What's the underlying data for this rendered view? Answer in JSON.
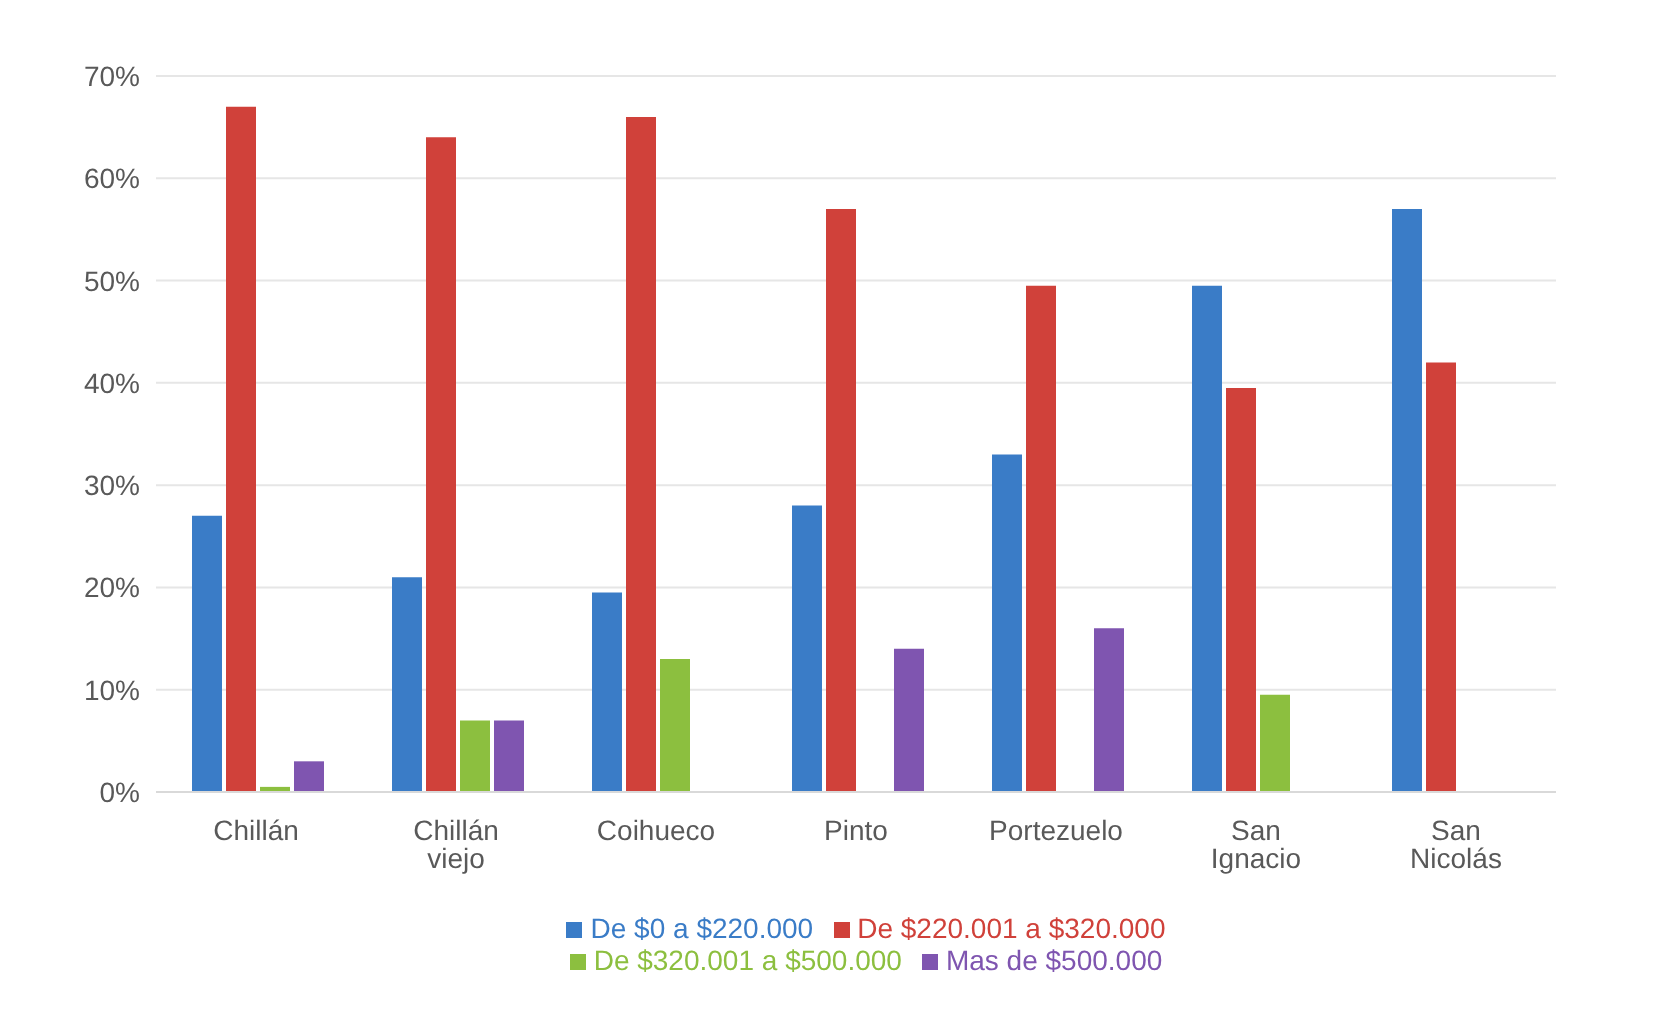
{
  "chart_data": {
    "type": "bar",
    "categories": [
      "Chillán",
      "Chillán viejo",
      "Coihueco",
      "Pinto",
      "Portezuelo",
      "San Ignacio",
      "San Nicolás"
    ],
    "series": [
      {
        "name": "De $0 a $220.000",
        "color": "#3a7cc7",
        "values": [
          27,
          21,
          19.5,
          28,
          33,
          49.5,
          57
        ]
      },
      {
        "name": "De $220.001 a $320.000",
        "color": "#d0413a",
        "values": [
          67,
          64,
          66,
          57,
          49.5,
          39.5,
          42
        ]
      },
      {
        "name": "De $320.001 a $500.000",
        "color": "#8cbf3f",
        "values": [
          0.5,
          7,
          13,
          0,
          0,
          9.5,
          0
        ]
      },
      {
        "name": "Mas de $500.000",
        "color": "#7f55b0",
        "values": [
          3,
          7,
          0,
          14,
          16,
          0,
          0
        ]
      }
    ],
    "ylim": [
      0,
      70
    ],
    "yticks": [
      {
        "value": 0,
        "label": "0%"
      },
      {
        "value": 10,
        "label": "10%"
      },
      {
        "value": 20,
        "label": "20%"
      },
      {
        "value": 30,
        "label": "30%"
      },
      {
        "value": 40,
        "label": "40%"
      },
      {
        "value": 50,
        "label": "50%"
      },
      {
        "value": 60,
        "label": "60%"
      },
      {
        "value": 70,
        "label": "70%"
      }
    ],
    "grid": "y",
    "legend": "bottom"
  }
}
